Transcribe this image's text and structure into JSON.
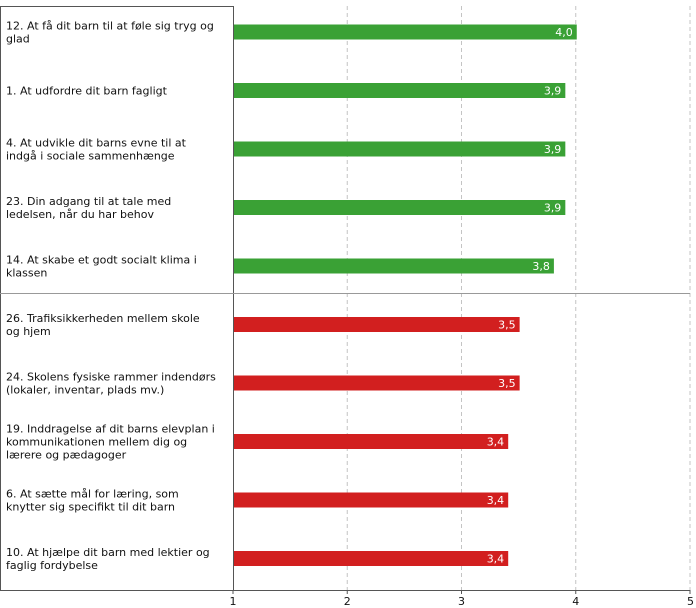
{
  "chart_data": {
    "type": "bar",
    "orientation": "horizontal",
    "xlim": [
      1,
      5
    ],
    "x_ticks": [
      "1",
      "2",
      "3",
      "4",
      "5"
    ],
    "grid": "vertical dashed",
    "groups": [
      {
        "color": "#3aa135",
        "items": [
          {
            "label": [
              "12. At få dit barn til at føle sig tryg og",
              "glad"
            ],
            "value": 4.0,
            "value_label": "4,0"
          },
          {
            "label": [
              "1. At udfordre dit barn fagligt"
            ],
            "value": 3.9,
            "value_label": "3,9"
          },
          {
            "label": [
              "4. At udvikle dit barns evne til at",
              "indgå i sociale sammenhænge"
            ],
            "value": 3.9,
            "value_label": "3,9"
          },
          {
            "label": [
              "23. Din adgang til at tale med",
              "ledelsen, når du har behov"
            ],
            "value": 3.9,
            "value_label": "3,9"
          },
          {
            "label": [
              "14. At skabe et godt socialt klima i",
              "klassen"
            ],
            "value": 3.8,
            "value_label": "3,8"
          }
        ]
      },
      {
        "color": "#d21f1f",
        "items": [
          {
            "label": [
              "26. Trafiksikkerheden mellem skole",
              "og hjem"
            ],
            "value": 3.5,
            "value_label": "3,5"
          },
          {
            "label": [
              "24. Skolens fysiske rammer indendørs",
              "(lokaler, inventar, plads mv.)"
            ],
            "value": 3.5,
            "value_label": "3,5"
          },
          {
            "label": [
              "19. Inddragelse af dit barns elevplan i",
              "kommunikationen mellem dig og",
              "lærere og pædagoger"
            ],
            "value": 3.4,
            "value_label": "3,4"
          },
          {
            "label": [
              "6. At sætte mål for læring, som",
              "knytter sig specifikt til dit barn"
            ],
            "value": 3.4,
            "value_label": "3,4"
          },
          {
            "label": [
              "10. At hjælpe dit barn med lektier og",
              "faglig fordybelse"
            ],
            "value": 3.4,
            "value_label": "3,4"
          }
        ]
      }
    ]
  }
}
